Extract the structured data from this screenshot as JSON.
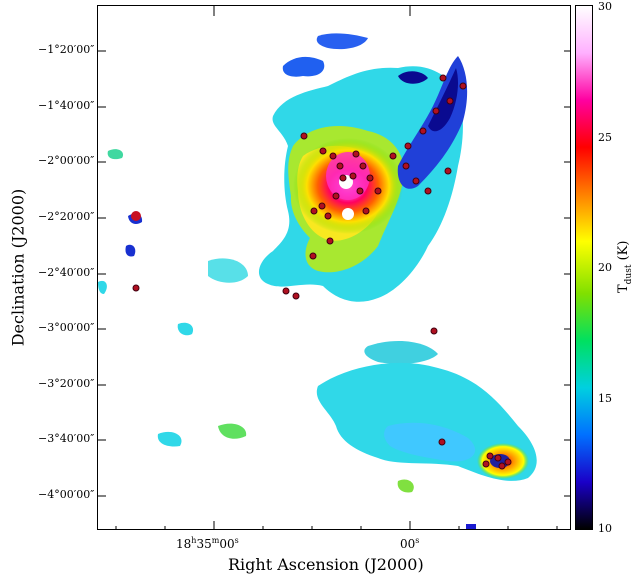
{
  "figure": {
    "x_axis_title": "Right Ascension (J2000)",
    "y_axis_title": "Declination (J2000)",
    "colorbar_label": "T",
    "colorbar_label_sub": "dust",
    "colorbar_units": "(K)"
  },
  "dec_ticks": [
    "−1°20′00″",
    "−1°40′00″",
    "−2°00′00″",
    "−2°20′00″",
    "−2°40′00″",
    "−3°00′00″",
    "−3°20′00″",
    "−3°40′00″",
    "−4°00′00″"
  ],
  "ra_ticks": {
    "left": {
      "h": "18",
      "m": "35",
      "s": "00"
    },
    "right": {
      "s": "00"
    }
  },
  "colorbar": {
    "min": 10,
    "max": 30,
    "ticks": [
      "30",
      "25",
      "20",
      "15",
      "10"
    ],
    "colors": [
      "#000000",
      "#1a00c8",
      "#0070ff",
      "#00d0e0",
      "#00e060",
      "#80e000",
      "#ffff00",
      "#ff8000",
      "#ff0000",
      "#ff00a0",
      "#ffb0ff",
      "#ffffff"
    ]
  }
}
